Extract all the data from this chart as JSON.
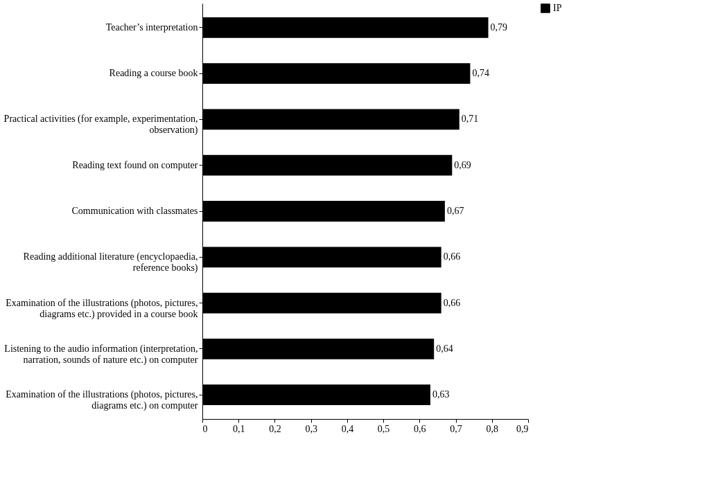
{
  "chart_data": {
    "type": "bar",
    "orientation": "horizontal",
    "categories": [
      "Teacher’s interpretation",
      "Reading a course book",
      "Practical activities (for example, experimentation, observation)",
      "Reading text found on computer",
      "Communication with classmates",
      "Reading additional literature (encyclopaedia, reference books)",
      "Examination of the illustrations (photos, pictures, diagrams etc.) provided in a course book",
      "Listening to the audio information (interpretation, narration, sounds of nature etc.) on computer",
      "Examination of the illustrations (photos, pictures, diagrams etc.) on computer"
    ],
    "series": [
      {
        "name": "IP",
        "color": "#000000",
        "values": [
          0.79,
          0.74,
          0.71,
          0.69,
          0.67,
          0.66,
          0.66,
          0.64,
          0.63
        ],
        "value_labels": [
          "0,79",
          "0,74",
          "0,71",
          "0,69",
          "0,67",
          "0,66",
          "0,66",
          "0,64",
          "0,63"
        ]
      }
    ],
    "xlim": [
      0,
      0.9
    ],
    "xticks": [
      0,
      {
        "value": 0.1,
        "label": "0,1"
      },
      {
        "value": 0.2,
        "label": "0,2"
      },
      {
        "value": 0.3,
        "label": "0,3"
      },
      {
        "value": 0.4,
        "label": "0,4"
      },
      {
        "value": 0.5,
        "label": "0,5"
      },
      {
        "value": 0.6,
        "label": "0,6"
      },
      {
        "value": 0.7,
        "label": "0,7"
      },
      {
        "value": 0.8,
        "label": "0,8"
      },
      {
        "value": 0.9,
        "label": "0,9"
      }
    ],
    "grid": false,
    "legend": "right"
  }
}
